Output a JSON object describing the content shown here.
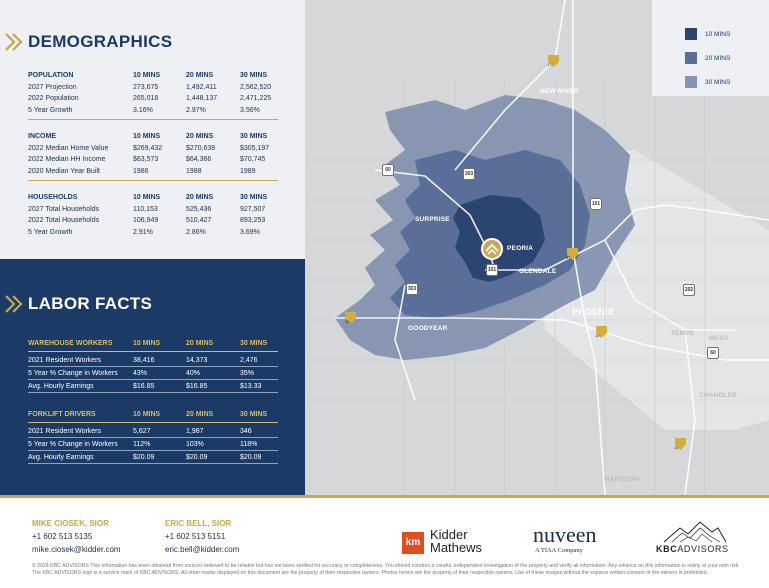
{
  "demographics": {
    "title": "DEMOGRAPHICS",
    "sections": [
      {
        "header": [
          "POPULATION",
          "10 MINS",
          "20 MINS",
          "30 MINS"
        ],
        "rows": [
          [
            "2027 Projection",
            "273,675",
            "1,492,411",
            "2,562,520"
          ],
          [
            "2022 Population",
            "265,018",
            "1,448,137",
            "2,471,225"
          ],
          [
            "5 Year Growth",
            "3.16%",
            "2.97%",
            "3.56%"
          ]
        ]
      },
      {
        "header": [
          "INCOME",
          "10 MINS",
          "20 MINS",
          "30 MINS"
        ],
        "rows": [
          [
            "2022 Median Home Value",
            "$269,432",
            "$270,638",
            "$305,197"
          ],
          [
            "2022 Median HH Income",
            "$63,573",
            "$64,366",
            "$70,745"
          ],
          [
            "2020 Median Year Built",
            "1986",
            "1988",
            "1989"
          ]
        ]
      },
      {
        "header": [
          "HOUSEHOLDS",
          "10 MINS",
          "20 MINS",
          "30 MINS"
        ],
        "rows": [
          [
            "2027 Total Households",
            "110,153",
            "525,436",
            "927,507"
          ],
          [
            "2022 Total Households",
            "106,949",
            "510,427",
            "893,253"
          ],
          [
            "5 Year Growth",
            "2.91%",
            "2.86%",
            "3.69%"
          ]
        ]
      }
    ]
  },
  "labor": {
    "title": "LABOR FACTS",
    "sections": [
      {
        "header": [
          "WAREHOUSE WORKERS",
          "10 MINS",
          "20 MINS",
          "30 MINS"
        ],
        "rows": [
          [
            "2021 Resident Workers",
            "38,416",
            "14,373",
            "2,476"
          ],
          [
            "5 Year % Change in Workers",
            "43%",
            "40%",
            "35%"
          ],
          [
            "Avg. Hourly Earnings",
            "$16.85",
            "$16.85",
            "$13.33"
          ]
        ]
      },
      {
        "header": [
          "FORKLIFT DRIVERS",
          "10 MINS",
          "20 MINS",
          "30 MINS"
        ],
        "rows": [
          [
            "2021 Resident Workers",
            "5,627",
            "1,987",
            "346"
          ],
          [
            "5 Year % Change in Workers",
            "112%",
            "103%",
            "118%"
          ],
          [
            "Avg. Hourly Earnings",
            "$20.09",
            "$20.09",
            "$20.09"
          ]
        ]
      }
    ]
  },
  "legend": {
    "items": [
      {
        "label": "10 MINS",
        "color": "#2b4470"
      },
      {
        "label": "20 MINS",
        "color": "#596f98"
      },
      {
        "label": "30 MINS",
        "color": "#8592b0"
      }
    ]
  },
  "map": {
    "cities": {
      "new_river": "NEW RIVER",
      "surprise": "SURPRISE",
      "peoria": "PEORIA",
      "glendale": "GLENDALE",
      "phoenix": "PHOENIX",
      "goodyear": "GOODYEAR",
      "tempe": "TEMPE",
      "mesa": "MESA",
      "chandler": "CHANDLER",
      "maricopa": "MARICOPA"
    },
    "routes": {
      "r17a": "17",
      "r60": "60",
      "r303a": "303",
      "r101a": "101",
      "r17b": "17",
      "r101b": "101",
      "r303b": "303",
      "r10a": "10",
      "r10b": "10",
      "r202": "202",
      "r60b": "60",
      "r10c": "10"
    },
    "colors": {
      "base": "#d6d7d9",
      "ring30": "#8592b0",
      "ring20": "#596f98",
      "ring10": "#2b4470"
    }
  },
  "contacts": [
    {
      "name": "MIKE CIOSEK, SIOR",
      "phone": "+1 602 513 5135",
      "email": "mike.ciosek@kidder.com"
    },
    {
      "name": "ERIC BELL, SIOR",
      "phone": "+1 602 513 5151",
      "email": "eric.bell@kidder.com"
    }
  ],
  "logos": {
    "kidder_mark": "km",
    "kidder_line1": "Kidder",
    "kidder_line2": "Mathews",
    "nuveen": "nuveen",
    "nuveen_sub": "A TIAA Company",
    "kbc_bold": "KBC",
    "kbc_rest": "ADVISORS"
  },
  "disclaimer": "© 2024 KBC ADVISORS This information has been obtained from sources believed to be reliable but has not been verified for accuracy or completeness. You should conduct a careful, independent investigation of the property and verify all information. Any reliance on this information is solely at your own risk. The KBC ADVISORS logo is a service mark of KBC ADVISORS. All other marks displayed on this document are the property of their respective owners. Photos herein are the property of their respective owners. Use of these images without the express written consent of the owners is prohibited."
}
